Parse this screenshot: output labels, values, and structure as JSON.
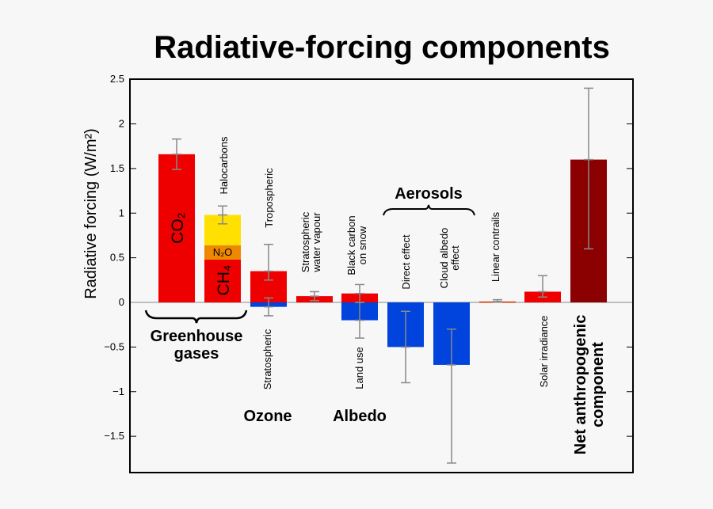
{
  "chart_data": {
    "type": "bar",
    "title": "Radiative-forcing components",
    "ylabel": "Radiative forcing (W/m²)",
    "ylim": [
      -1.9,
      2.5
    ],
    "yticks": [
      2.5,
      2,
      1.5,
      1,
      0.5,
      0,
      -0.5,
      -1,
      -1.5
    ],
    "ytick_labels": [
      "2.5",
      "2",
      "1.5",
      "1",
      "0.5",
      "0",
      "−0.5",
      "−1",
      "−1.5"
    ],
    "grid": false,
    "colors": {
      "positive": "#ee0000",
      "negative": "#0044dd",
      "halocarbons": "#ffe000",
      "n2o": "#ee8800",
      "net": "#8b0000",
      "errorbar": "#888888"
    },
    "bars": [
      {
        "category": "CO₂",
        "segments": [
          {
            "label": "CO₂",
            "value": 1.66,
            "color": "#ee0000"
          }
        ],
        "errors": [
          {
            "value": 1.66,
            "low": 1.49,
            "high": 1.83
          }
        ]
      },
      {
        "category": "CH₄ / N₂O / Halocarbons",
        "segments": [
          {
            "label": "CH₄",
            "value": 0.48,
            "color": "#ee0000"
          },
          {
            "label": "N₂O",
            "value": 0.16,
            "color": "#ee8800"
          },
          {
            "label": "Halocarbons",
            "value": 0.34,
            "color": "#ffe000"
          }
        ],
        "errors": [
          {
            "value": 0.98,
            "low": 0.88,
            "high": 1.08
          }
        ]
      },
      {
        "category": "Ozone",
        "segments": [
          {
            "label": "Tropospheric",
            "value": 0.35,
            "color": "#ee0000"
          },
          {
            "label": "Stratospheric",
            "value": -0.05,
            "color": "#0044dd"
          }
        ],
        "errors": [
          {
            "value": 0.35,
            "low": 0.25,
            "high": 0.65
          },
          {
            "value": -0.05,
            "low": -0.15,
            "high": 0.05
          }
        ]
      },
      {
        "category": "Stratospheric water vapour",
        "segments": [
          {
            "label": "Stratospheric water vapour",
            "value": 0.07,
            "color": "#ee0000"
          }
        ],
        "errors": [
          {
            "value": 0.07,
            "low": 0.02,
            "high": 0.12
          }
        ]
      },
      {
        "category": "Albedo",
        "segments": [
          {
            "label": "Black carbon on snow",
            "value": 0.1,
            "color": "#ee0000"
          },
          {
            "label": "Land use",
            "value": -0.2,
            "color": "#0044dd"
          }
        ],
        "errors": [
          {
            "value": 0.1,
            "low": 0.0,
            "high": 0.2
          },
          {
            "value": -0.2,
            "low": -0.4,
            "high": 0.0
          }
        ]
      },
      {
        "category": "Direct effect",
        "segments": [
          {
            "label": "Direct effect",
            "value": -0.5,
            "color": "#0044dd"
          }
        ],
        "errors": [
          {
            "value": -0.5,
            "low": -0.9,
            "high": -0.1
          }
        ]
      },
      {
        "category": "Cloud albedo effect",
        "segments": [
          {
            "label": "Cloud albedo effect",
            "value": -0.7,
            "color": "#0044dd"
          }
        ],
        "errors": [
          {
            "value": -0.7,
            "low": -1.8,
            "high": -0.3
          }
        ]
      },
      {
        "category": "Linear contrails",
        "segments": [
          {
            "label": "Linear contrails",
            "value": 0.01,
            "color": "#cc3300"
          }
        ],
        "errors": [
          {
            "value": 0.01,
            "low": 0.003,
            "high": 0.03
          }
        ]
      },
      {
        "category": "Solar irradiance",
        "segments": [
          {
            "label": "Solar irradiance",
            "value": 0.12,
            "color": "#ee0000"
          }
        ],
        "errors": [
          {
            "value": 0.12,
            "low": 0.06,
            "high": 0.3
          }
        ]
      },
      {
        "category": "Net anthropogenic component",
        "segments": [
          {
            "label": "Net anthropogenic component",
            "value": 1.6,
            "color": "#8b0000"
          }
        ],
        "errors": [
          {
            "value": 1.6,
            "low": 0.6,
            "high": 2.4
          }
        ]
      }
    ],
    "annotations": {
      "co2": "CO₂",
      "n2o": "N₂O",
      "ch4": "CH₄",
      "halocarbons": "Halocarbons",
      "tropospheric": "Tropospheric",
      "stratospheric": "Stratospheric",
      "water_vapour_1": "Stratospheric",
      "water_vapour_2": "water vapour",
      "black_carbon_1": "Black carbon",
      "black_carbon_2": "on snow",
      "land_use": "Land use",
      "aerosols": "Aerosols",
      "direct_effect": "Direct effect",
      "cloud_albedo_1": "Cloud albedo",
      "cloud_albedo_2": "effect",
      "linear_contrails": "Linear contrails",
      "solar_irradiance": "Solar irradiance",
      "net_1": "Net anthropogenic",
      "net_2": "component",
      "greenhouse_1": "Greenhouse",
      "greenhouse_2": "gases",
      "ozone": "Ozone",
      "albedo": "Albedo"
    }
  }
}
